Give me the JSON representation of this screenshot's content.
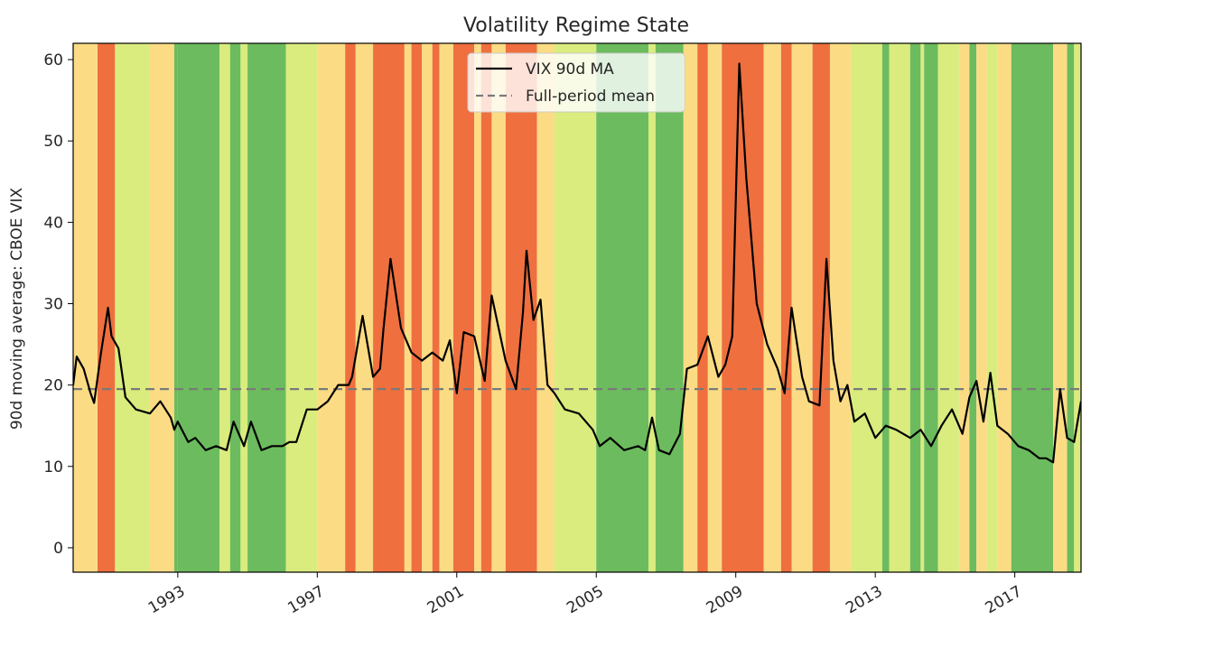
{
  "chart_data": {
    "type": "line",
    "title": "Volatility Regime State",
    "xlabel": "",
    "ylabel": "90d moving average: CBOE VIX",
    "xlim": [
      1990.0,
      2018.9
    ],
    "ylim": [
      -3,
      62
    ],
    "x_ticks": [
      1993,
      1997,
      2001,
      2005,
      2009,
      2013,
      2017
    ],
    "x_tick_labels": [
      "1993",
      "1997",
      "2001",
      "2005",
      "2009",
      "2013",
      "2017"
    ],
    "y_ticks": [
      0,
      10,
      20,
      30,
      40,
      50,
      60
    ],
    "y_tick_labels": [
      "0",
      "10",
      "20",
      "30",
      "40",
      "50",
      "60"
    ],
    "grid": false,
    "legend": {
      "placement": "upper-center",
      "entries": [
        {
          "label": "VIX 90d MA",
          "style": "solid",
          "color": "#000000"
        },
        {
          "label": "Full-period mean",
          "style": "dashed",
          "color": "#7a7a7a"
        }
      ]
    },
    "regime_colors": {
      "calm": "#6cbb5e",
      "low": "#d9ec7d",
      "elevated": "#fbdc84",
      "high": "#ef6f3f"
    },
    "regime_bands": [
      {
        "start": 1990.0,
        "end": 1990.7,
        "regime": "elevated"
      },
      {
        "start": 1990.7,
        "end": 1991.2,
        "regime": "high"
      },
      {
        "start": 1991.2,
        "end": 1992.2,
        "regime": "low"
      },
      {
        "start": 1992.2,
        "end": 1992.9,
        "regime": "elevated"
      },
      {
        "start": 1992.9,
        "end": 1993.0,
        "regime": "calm"
      },
      {
        "start": 1993.0,
        "end": 1994.2,
        "regime": "calm"
      },
      {
        "start": 1994.2,
        "end": 1994.5,
        "regime": "low"
      },
      {
        "start": 1994.5,
        "end": 1994.8,
        "regime": "calm"
      },
      {
        "start": 1994.8,
        "end": 1995.0,
        "regime": "low"
      },
      {
        "start": 1995.0,
        "end": 1996.1,
        "regime": "calm"
      },
      {
        "start": 1996.1,
        "end": 1997.0,
        "regime": "low"
      },
      {
        "start": 1997.0,
        "end": 1997.8,
        "regime": "elevated"
      },
      {
        "start": 1997.8,
        "end": 1998.1,
        "regime": "high"
      },
      {
        "start": 1998.1,
        "end": 1998.6,
        "regime": "elevated"
      },
      {
        "start": 1998.6,
        "end": 1999.5,
        "regime": "high"
      },
      {
        "start": 1999.5,
        "end": 1999.7,
        "regime": "elevated"
      },
      {
        "start": 1999.7,
        "end": 2000.0,
        "regime": "high"
      },
      {
        "start": 2000.0,
        "end": 2000.3,
        "regime": "elevated"
      },
      {
        "start": 2000.3,
        "end": 2000.5,
        "regime": "high"
      },
      {
        "start": 2000.5,
        "end": 2000.9,
        "regime": "elevated"
      },
      {
        "start": 2000.9,
        "end": 2001.5,
        "regime": "high"
      },
      {
        "start": 2001.5,
        "end": 2001.7,
        "regime": "elevated"
      },
      {
        "start": 2001.7,
        "end": 2002.0,
        "regime": "high"
      },
      {
        "start": 2002.0,
        "end": 2002.4,
        "regime": "elevated"
      },
      {
        "start": 2002.4,
        "end": 2003.3,
        "regime": "high"
      },
      {
        "start": 2003.3,
        "end": 2003.8,
        "regime": "elevated"
      },
      {
        "start": 2003.8,
        "end": 2005.0,
        "regime": "low"
      },
      {
        "start": 2005.0,
        "end": 2006.5,
        "regime": "calm"
      },
      {
        "start": 2006.5,
        "end": 2006.7,
        "regime": "low"
      },
      {
        "start": 2006.7,
        "end": 2007.5,
        "regime": "calm"
      },
      {
        "start": 2007.5,
        "end": 2007.9,
        "regime": "elevated"
      },
      {
        "start": 2007.9,
        "end": 2008.2,
        "regime": "high"
      },
      {
        "start": 2008.2,
        "end": 2008.6,
        "regime": "elevated"
      },
      {
        "start": 2008.6,
        "end": 2009.8,
        "regime": "high"
      },
      {
        "start": 2009.8,
        "end": 2010.3,
        "regime": "elevated"
      },
      {
        "start": 2010.3,
        "end": 2010.6,
        "regime": "high"
      },
      {
        "start": 2010.6,
        "end": 2011.2,
        "regime": "elevated"
      },
      {
        "start": 2011.2,
        "end": 2011.7,
        "regime": "high"
      },
      {
        "start": 2011.7,
        "end": 2012.3,
        "regime": "elevated"
      },
      {
        "start": 2012.3,
        "end": 2013.2,
        "regime": "low"
      },
      {
        "start": 2013.2,
        "end": 2013.4,
        "regime": "calm"
      },
      {
        "start": 2013.4,
        "end": 2014.0,
        "regime": "low"
      },
      {
        "start": 2014.0,
        "end": 2014.3,
        "regime": "calm"
      },
      {
        "start": 2014.3,
        "end": 2014.4,
        "regime": "low"
      },
      {
        "start": 2014.4,
        "end": 2014.8,
        "regime": "calm"
      },
      {
        "start": 2014.8,
        "end": 2015.4,
        "regime": "low"
      },
      {
        "start": 2015.4,
        "end": 2015.7,
        "regime": "elevated"
      },
      {
        "start": 2015.7,
        "end": 2015.9,
        "regime": "calm"
      },
      {
        "start": 2015.9,
        "end": 2016.2,
        "regime": "elevated"
      },
      {
        "start": 2016.2,
        "end": 2016.5,
        "regime": "low"
      },
      {
        "start": 2016.5,
        "end": 2016.9,
        "regime": "elevated"
      },
      {
        "start": 2016.9,
        "end": 2018.1,
        "regime": "calm"
      },
      {
        "start": 2018.1,
        "end": 2018.5,
        "regime": "elevated"
      },
      {
        "start": 2018.5,
        "end": 2018.7,
        "regime": "calm"
      },
      {
        "start": 2018.7,
        "end": 2018.9,
        "regime": "low"
      }
    ],
    "series": [
      {
        "name": "VIX 90d MA",
        "x": [
          1990.0,
          1990.1,
          1990.3,
          1990.5,
          1990.6,
          1990.8,
          1991.0,
          1991.1,
          1991.3,
          1991.5,
          1991.8,
          1992.2,
          1992.5,
          1992.8,
          1992.9,
          1993.0,
          1993.3,
          1993.5,
          1993.8,
          1994.1,
          1994.4,
          1994.6,
          1994.9,
          1995.1,
          1995.4,
          1995.7,
          1996.0,
          1996.2,
          1996.4,
          1996.7,
          1997.0,
          1997.3,
          1997.6,
          1997.9,
          1998.0,
          1998.3,
          1998.6,
          1998.8,
          1998.9,
          1999.1,
          1999.4,
          1999.7,
          2000.0,
          2000.3,
          2000.6,
          2000.8,
          2001.0,
          2001.2,
          2001.5,
          2001.8,
          2002.0,
          2002.4,
          2002.7,
          2002.9,
          2003.0,
          2003.2,
          2003.4,
          2003.6,
          2003.8,
          2004.1,
          2004.5,
          2004.9,
          2005.1,
          2005.4,
          2005.8,
          2006.2,
          2006.4,
          2006.6,
          2006.8,
          2007.1,
          2007.4,
          2007.6,
          2007.9,
          2008.2,
          2008.5,
          2008.7,
          2008.9,
          2009.1,
          2009.3,
          2009.6,
          2009.9,
          2010.2,
          2010.4,
          2010.6,
          2010.9,
          2011.1,
          2011.4,
          2011.6,
          2011.8,
          2012.0,
          2012.2,
          2012.4,
          2012.7,
          2013.0,
          2013.3,
          2013.6,
          2014.0,
          2014.3,
          2014.6,
          2014.9,
          2015.2,
          2015.5,
          2015.7,
          2015.9,
          2016.1,
          2016.3,
          2016.5,
          2016.8,
          2017.1,
          2017.4,
          2017.7,
          2017.9,
          2018.1,
          2018.3,
          2018.5,
          2018.7,
          2018.9
        ],
        "y": [
          20.0,
          23.5,
          22.0,
          19.0,
          17.8,
          24.0,
          29.5,
          26.0,
          24.5,
          18.5,
          17.0,
          16.5,
          18.0,
          16.0,
          14.5,
          15.5,
          13.0,
          13.5,
          12.0,
          12.5,
          12.0,
          15.5,
          12.5,
          15.5,
          12.0,
          12.5,
          12.5,
          13.0,
          13.0,
          17.0,
          17.0,
          18.0,
          20.0,
          20.0,
          21.0,
          28.5,
          21.0,
          22.0,
          27.0,
          35.5,
          27.0,
          24.0,
          23.0,
          24.0,
          23.0,
          25.5,
          19.0,
          26.5,
          26.0,
          20.5,
          31.0,
          23.0,
          19.5,
          29.0,
          36.5,
          28.0,
          30.5,
          20.0,
          19.0,
          17.0,
          16.5,
          14.5,
          12.5,
          13.5,
          12.0,
          12.5,
          12.0,
          16.0,
          12.0,
          11.5,
          14.0,
          22.0,
          22.5,
          26.0,
          21.0,
          22.5,
          26.0,
          59.5,
          45.5,
          30.0,
          25.0,
          22.0,
          19.0,
          29.5,
          21.0,
          18.0,
          17.5,
          35.5,
          23.0,
          18.0,
          20.0,
          15.5,
          16.5,
          13.5,
          15.0,
          14.5,
          13.5,
          14.5,
          12.5,
          15.0,
          17.0,
          14.0,
          18.5,
          20.5,
          15.5,
          21.5,
          15.0,
          14.0,
          12.5,
          12.0,
          11.0,
          11.0,
          10.5,
          19.5,
          13.5,
          13.0,
          18.0
        ]
      },
      {
        "name": "Full-period mean",
        "y": [
          19.5
        ]
      }
    ]
  }
}
